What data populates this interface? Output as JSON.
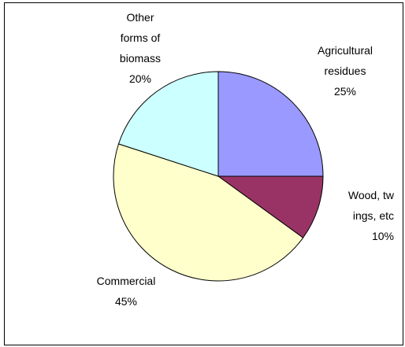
{
  "chart_data": {
    "type": "pie",
    "categories": [
      "Agricultural residues",
      "Wood, tw ings, etc",
      "Commercial",
      "Other forms of biomass"
    ],
    "values": [
      25,
      10,
      45,
      20
    ],
    "value_labels": [
      "25%",
      "10%",
      "45%",
      "20%"
    ],
    "colors": [
      "#9999ff",
      "#993366",
      "#ffffcc",
      "#ccffff"
    ]
  }
}
